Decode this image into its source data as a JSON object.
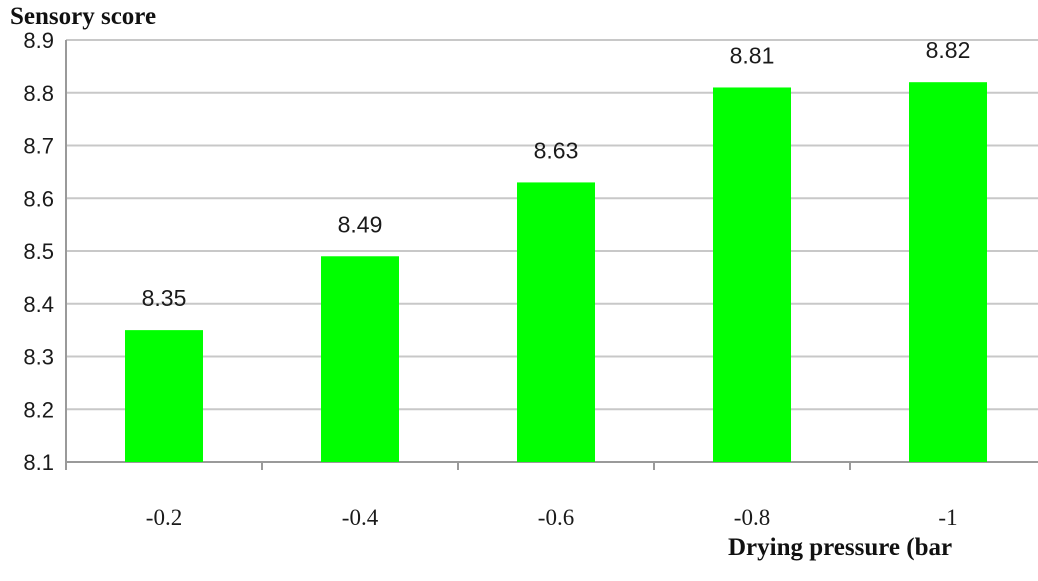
{
  "chart_data": {
    "type": "bar",
    "ylabel": "Sensory score",
    "xlabel": "Drying pressure (bar",
    "categories": [
      "-0.2",
      "-0.4",
      "-0.6",
      "-0.8",
      "-1"
    ],
    "values": [
      8.35,
      8.49,
      8.63,
      8.81,
      8.82
    ],
    "data_labels": [
      "8.35",
      "8.49",
      "8.63",
      "8.81",
      "8.82"
    ],
    "ylim": [
      8.1,
      8.9
    ],
    "yticks": [
      "8.1",
      "8.2",
      "8.3",
      "8.4",
      "8.5",
      "8.6",
      "8.7",
      "8.8",
      "8.9"
    ],
    "grid": true,
    "legend": "none",
    "bar_color": "#00ff00",
    "grid_color": "#c8c8c8"
  }
}
